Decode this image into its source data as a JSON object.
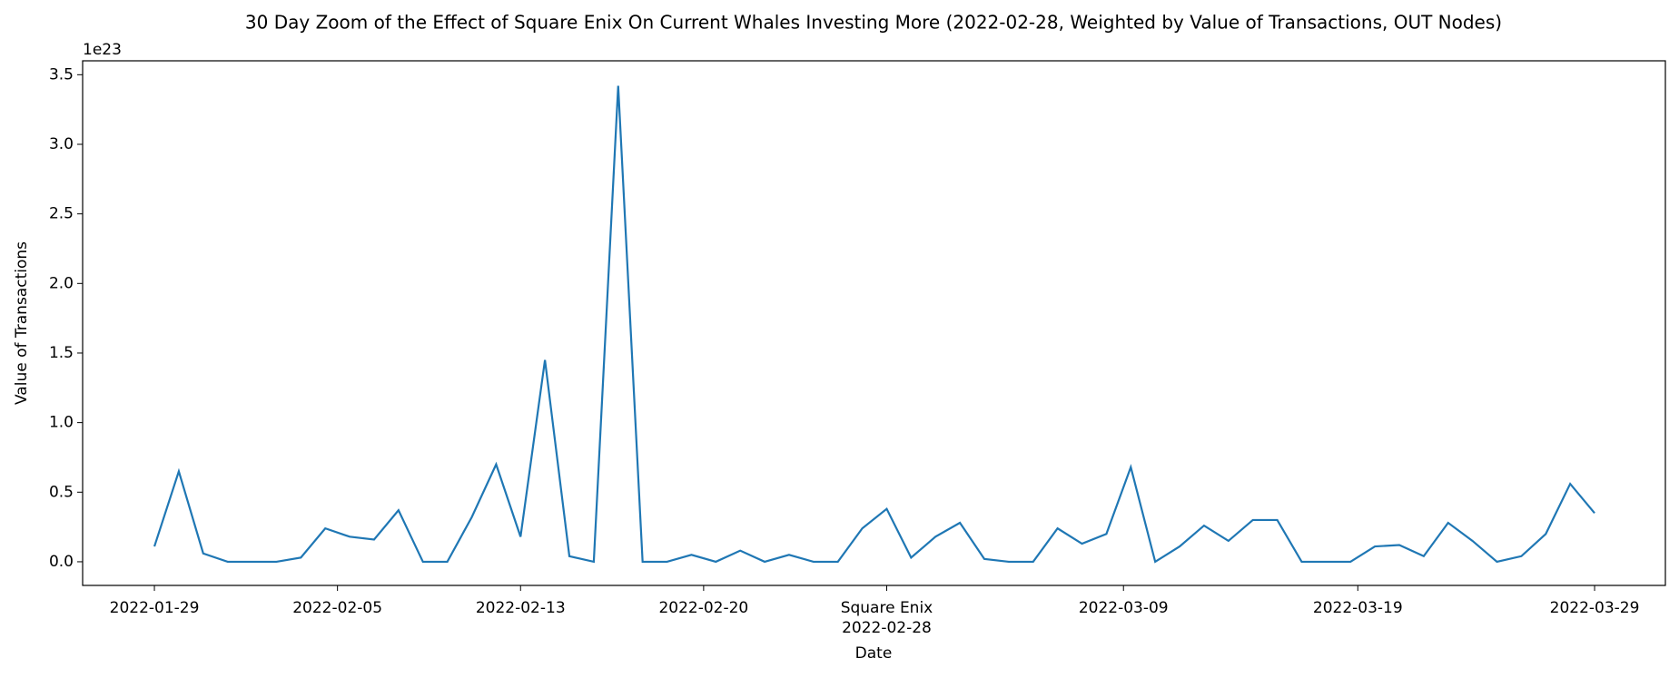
{
  "chart_data": {
    "type": "line",
    "title": "30 Day Zoom of the Effect of Square Enix On Current Whales Investing More (2022-02-28, Weighted by Value of Transactions, OUT Nodes)",
    "x_label": "Date",
    "y_label": "Value of Transactions",
    "y_offset_label": "1e23",
    "annotation": {
      "text": "Square Enix",
      "x": 30
    },
    "series": [
      {
        "name": "Value of Transactions",
        "color": "#1f77b4",
        "values": [
          0.11,
          0.65,
          0.06,
          0,
          0,
          0,
          0.03,
          0.24,
          0.18,
          0.16,
          0.37,
          0,
          0,
          0.32,
          0.7,
          0.18,
          1.45,
          0.04,
          0,
          3.42,
          0,
          0,
          0.05,
          0,
          0.08,
          0,
          0.05,
          0,
          0,
          0.24,
          0.38,
          0.03,
          0.18,
          0.28,
          0.02,
          0,
          0,
          0.24,
          0.13,
          0.2,
          0.68,
          0,
          0.11,
          0.26,
          0.15,
          0.3,
          0.3,
          0,
          0,
          0,
          0.11,
          0.12,
          0.04,
          0.28,
          0.15,
          0,
          0.04,
          0.2,
          0.56,
          0.35
        ]
      }
    ],
    "xlim": [
      -2.94,
      61.9
    ],
    "xticks": [
      {
        "value": 0,
        "label": "2022-01-29"
      },
      {
        "value": 7.5,
        "label": "2022-02-05"
      },
      {
        "value": 15,
        "label": "2022-02-13"
      },
      {
        "value": 22.5,
        "label": "2022-02-20"
      },
      {
        "value": 30,
        "label": "2022-02-28"
      },
      {
        "value": 39.7,
        "label": "2022-03-09"
      },
      {
        "value": 49.3,
        "label": "2022-03-19"
      },
      {
        "value": 59,
        "label": "2022-03-29"
      }
    ],
    "ylim": [
      -0.17,
      3.6
    ],
    "yticks": [
      {
        "value": 0,
        "label": "0.0"
      },
      {
        "value": 0.5,
        "label": "0.5"
      },
      {
        "value": 1,
        "label": "1.0"
      },
      {
        "value": 1.5,
        "label": "1.5"
      },
      {
        "value": 2,
        "label": "2.0"
      },
      {
        "value": 2.5,
        "label": "2.5"
      },
      {
        "value": 3,
        "label": "3.0"
      },
      {
        "value": 3.5,
        "label": "3.5"
      }
    ],
    "grid": false
  }
}
